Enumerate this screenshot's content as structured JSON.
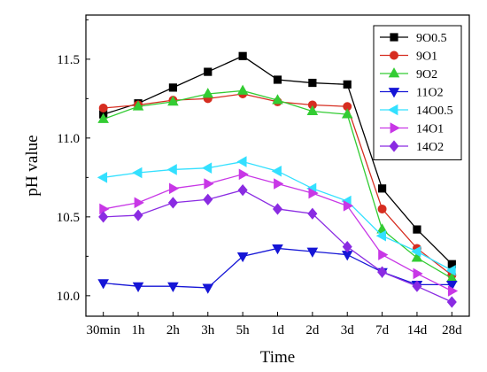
{
  "chart_data": {
    "type": "line",
    "xlabel": "Time",
    "ylabel": "pH value",
    "categories": [
      "30min",
      "1h",
      "2h",
      "3h",
      "5h",
      "1d",
      "2d",
      "3d",
      "7d",
      "14d",
      "28d"
    ],
    "y_ticks": [
      "10.0",
      "10.5",
      "11.0",
      "11.5"
    ],
    "ylim": [
      9.87,
      11.78
    ],
    "grid": false,
    "legend_position": "top-right",
    "series": [
      {
        "name": "9O0.5",
        "color": "#000000",
        "marker": "square",
        "values": [
          11.15,
          11.22,
          11.32,
          11.42,
          11.52,
          11.37,
          11.35,
          11.34,
          10.68,
          10.42,
          10.2
        ]
      },
      {
        "name": "9O1",
        "color": "#d62d20",
        "marker": "circle",
        "values": [
          11.19,
          11.21,
          11.24,
          11.25,
          11.28,
          11.23,
          11.21,
          11.2,
          10.55,
          10.3,
          10.13
        ]
      },
      {
        "name": "9O2",
        "color": "#33cc33",
        "marker": "triangle-up",
        "values": [
          11.12,
          11.2,
          11.23,
          11.28,
          11.3,
          11.24,
          11.17,
          11.15,
          10.42,
          10.24,
          10.11
        ]
      },
      {
        "name": "11O2",
        "color": "#1515d6",
        "marker": "triangle-down",
        "values": [
          10.08,
          10.06,
          10.06,
          10.05,
          10.25,
          10.3,
          10.28,
          10.26,
          10.15,
          10.07,
          10.07
        ]
      },
      {
        "name": "14O0.5",
        "color": "#33e0ff",
        "marker": "triangle-left",
        "values": [
          10.75,
          10.78,
          10.8,
          10.81,
          10.85,
          10.79,
          10.68,
          10.6,
          10.38,
          10.28,
          10.16
        ]
      },
      {
        "name": "14O1",
        "color": "#c837e6",
        "marker": "triangle-right",
        "values": [
          10.55,
          10.59,
          10.68,
          10.71,
          10.77,
          10.71,
          10.65,
          10.57,
          10.26,
          10.14,
          10.03
        ]
      },
      {
        "name": "14O2",
        "color": "#8a2be2",
        "marker": "diamond",
        "values": [
          10.5,
          10.51,
          10.59,
          10.61,
          10.67,
          10.55,
          10.52,
          10.31,
          10.15,
          10.06,
          9.96
        ]
      }
    ]
  }
}
